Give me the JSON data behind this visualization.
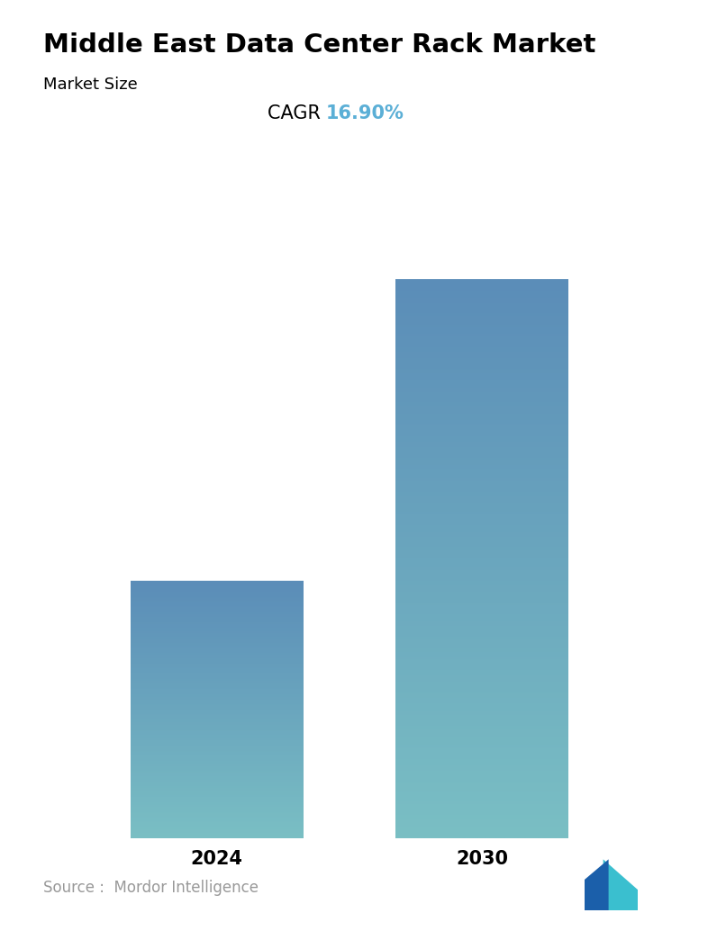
{
  "title": "Middle East Data Center Rack Market",
  "subtitle": "Market Size",
  "cagr_label": "CAGR ",
  "cagr_value": "16.90%",
  "cagr_color": "#5bafd6",
  "categories": [
    "2024",
    "2030"
  ],
  "values": [
    1.0,
    2.17
  ],
  "bar_color_top": "#5b8db8",
  "bar_color_bottom": "#7abfc4",
  "title_fontsize": 21,
  "subtitle_fontsize": 13,
  "cagr_fontsize": 15,
  "tick_fontsize": 15,
  "source_text": "Source :  Mordor Intelligence",
  "source_fontsize": 12,
  "background_color": "#ffffff",
  "bar_width": 0.28,
  "positions": [
    0.27,
    0.7
  ]
}
